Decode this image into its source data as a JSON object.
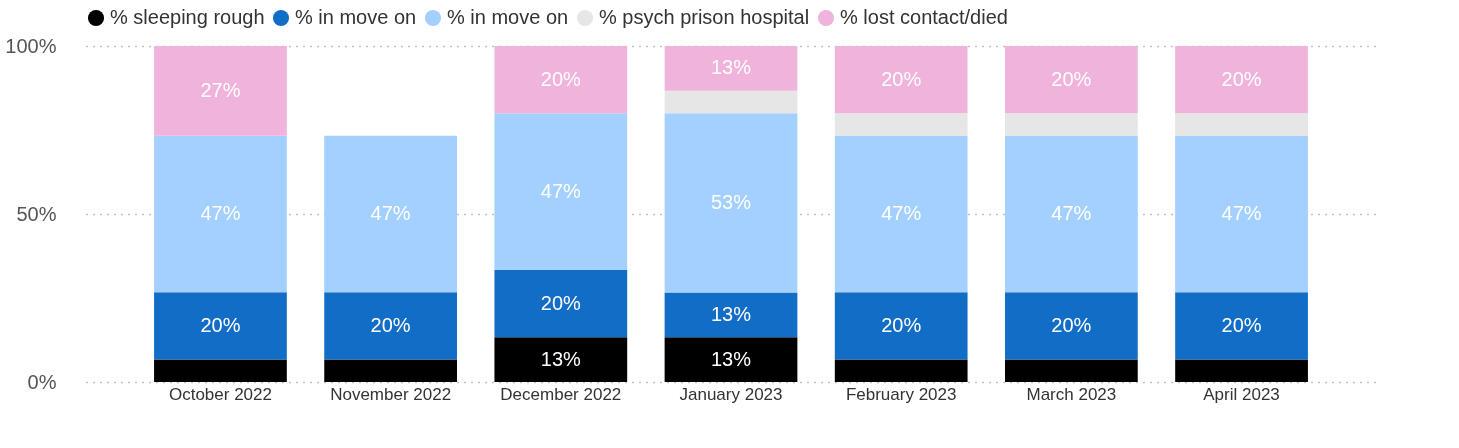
{
  "chart_data": {
    "type": "bar",
    "stacked": true,
    "categories": [
      "October 2022",
      "November 2022",
      "December 2022",
      "January 2023",
      "February 2023",
      "March 2023",
      "April 2023"
    ],
    "series": [
      {
        "name": "% sleeping rough",
        "color": "#000000",
        "values": [
          6.7,
          6.7,
          13.3,
          13.3,
          6.7,
          6.7,
          6.7
        ],
        "value_labels": [
          null,
          null,
          "13%",
          "13%",
          null,
          null,
          null
        ]
      },
      {
        "name": "% in move on",
        "color": "#126dc6",
        "values": [
          20,
          20,
          20,
          13.3,
          20,
          20,
          20
        ],
        "value_labels": [
          "20%",
          "20%",
          "20%",
          "13%",
          "20%",
          "20%",
          "20%"
        ]
      },
      {
        "name": "% in move on",
        "color": "#a3d0ff",
        "values": [
          46.6,
          46.6,
          46.7,
          53.4,
          46.6,
          46.6,
          46.6
        ],
        "value_labels": [
          "47%",
          "47%",
          "47%",
          "53%",
          "47%",
          "47%",
          "47%"
        ]
      },
      {
        "name": "% psych prison hospital",
        "color": "#e6e6e6",
        "values": [
          null,
          null,
          null,
          6.7,
          6.7,
          6.7,
          6.7
        ]
      },
      {
        "name": "% lost contact/died",
        "color": "#f0b3dc",
        "values": [
          26.7,
          null,
          20,
          13.3,
          20,
          20,
          20
        ],
        "value_labels": [
          "27%",
          null,
          "20%",
          "13%",
          "20%",
          "20%",
          "20%"
        ]
      }
    ],
    "ylim": [
      0,
      100
    ],
    "yticks": [
      {
        "value": 0,
        "label": "0%"
      },
      {
        "value": 50,
        "label": "50%"
      },
      {
        "value": 100,
        "label": "100%"
      }
    ],
    "grid": "y",
    "legend": "top left"
  }
}
